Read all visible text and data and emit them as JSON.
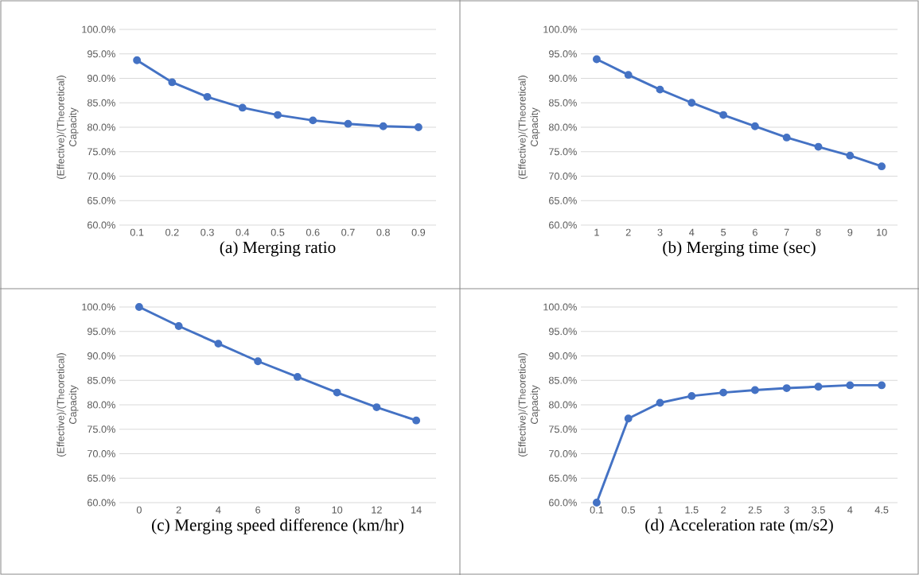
{
  "chart_data": [
    {
      "type": "line",
      "xlabel": "(a) Merging ratio",
      "ylabel": "(Effective)/(Theoretical) Capacity",
      "color": "#4472c4",
      "marker": "circle",
      "grid": "y",
      "categories": [
        "0.1",
        "0.2",
        "0.3",
        "0.4",
        "0.5",
        "0.6",
        "0.7",
        "0.8",
        "0.9"
      ],
      "values": [
        93.7,
        89.2,
        86.2,
        84.0,
        82.5,
        81.4,
        80.7,
        80.2,
        80.0
      ],
      "ylim": [
        60,
        100
      ],
      "yticks": [
        {
          "value": 60,
          "label": "60.0%"
        },
        {
          "value": 65,
          "label": "65.0%"
        },
        {
          "value": 70,
          "label": "70.0%"
        },
        {
          "value": 75,
          "label": "75.0%"
        },
        {
          "value": 80,
          "label": "80.0%"
        },
        {
          "value": 85,
          "label": "85.0%"
        },
        {
          "value": 90,
          "label": "90.0%"
        },
        {
          "value": 95,
          "label": "95.0%"
        },
        {
          "value": 100,
          "label": "100.0%"
        }
      ]
    },
    {
      "type": "line",
      "xlabel": "(b) Merging time (sec)",
      "ylabel": "(Effective)/(Theoretical) Capacity",
      "color": "#4472c4",
      "marker": "circle",
      "grid": "y",
      "categories": [
        "1",
        "2",
        "3",
        "4",
        "5",
        "6",
        "7",
        "8",
        "9",
        "10"
      ],
      "values": [
        93.9,
        90.7,
        87.7,
        85.0,
        82.5,
        80.2,
        77.9,
        76.0,
        74.2,
        72.0
      ],
      "ylim": [
        60,
        100
      ],
      "yticks": [
        {
          "value": 60,
          "label": "60.0%"
        },
        {
          "value": 65,
          "label": "65.0%"
        },
        {
          "value": 70,
          "label": "70.0%"
        },
        {
          "value": 75,
          "label": "75.0%"
        },
        {
          "value": 80,
          "label": "80.0%"
        },
        {
          "value": 85,
          "label": "85.0%"
        },
        {
          "value": 90,
          "label": "90.0%"
        },
        {
          "value": 95,
          "label": "95.0%"
        },
        {
          "value": 100,
          "label": "100.0%"
        }
      ]
    },
    {
      "type": "line",
      "xlabel": "(c) Merging speed difference (km/hr)",
      "ylabel": "(Effective)/(Theoretical) Capacity",
      "color": "#4472c4",
      "marker": "circle",
      "grid": "y",
      "categories": [
        "0",
        "2",
        "4",
        "6",
        "8",
        "10",
        "12",
        "14"
      ],
      "values": [
        100.0,
        96.1,
        92.5,
        88.9,
        85.7,
        82.5,
        79.5,
        76.8
      ],
      "ylim": [
        60,
        100
      ],
      "yticks": [
        {
          "value": 60,
          "label": "60.0%"
        },
        {
          "value": 65,
          "label": "65.0%"
        },
        {
          "value": 70,
          "label": "70.0%"
        },
        {
          "value": 75,
          "label": "75.0%"
        },
        {
          "value": 80,
          "label": "80.0%"
        },
        {
          "value": 85,
          "label": "85.0%"
        },
        {
          "value": 90,
          "label": "90.0%"
        },
        {
          "value": 95,
          "label": "95.0%"
        },
        {
          "value": 100,
          "label": "100.0%"
        }
      ]
    },
    {
      "type": "line",
      "xlabel": "(d) Acceleration rate (m/s2)",
      "ylabel": "(Effective)/(Theoretical) Capacity",
      "color": "#4472c4",
      "marker": "circle",
      "grid": "y",
      "categories": [
        "0.1",
        "0.5",
        "1",
        "1.5",
        "2",
        "2.5",
        "3",
        "3.5",
        "4",
        "4.5"
      ],
      "values": [
        60.0,
        77.2,
        80.4,
        81.8,
        82.5,
        83.0,
        83.4,
        83.7,
        84.0,
        84.0
      ],
      "ylim": [
        60,
        100
      ],
      "yticks": [
        {
          "value": 60,
          "label": "60.0%"
        },
        {
          "value": 65,
          "label": "65.0%"
        },
        {
          "value": 70,
          "label": "70.0%"
        },
        {
          "value": 75,
          "label": "75.0%"
        },
        {
          "value": 80,
          "label": "80.0%"
        },
        {
          "value": 85,
          "label": "85.0%"
        },
        {
          "value": 90,
          "label": "90.0%"
        },
        {
          "value": 95,
          "label": "95.0%"
        },
        {
          "value": 100,
          "label": "100.0%"
        }
      ]
    }
  ]
}
